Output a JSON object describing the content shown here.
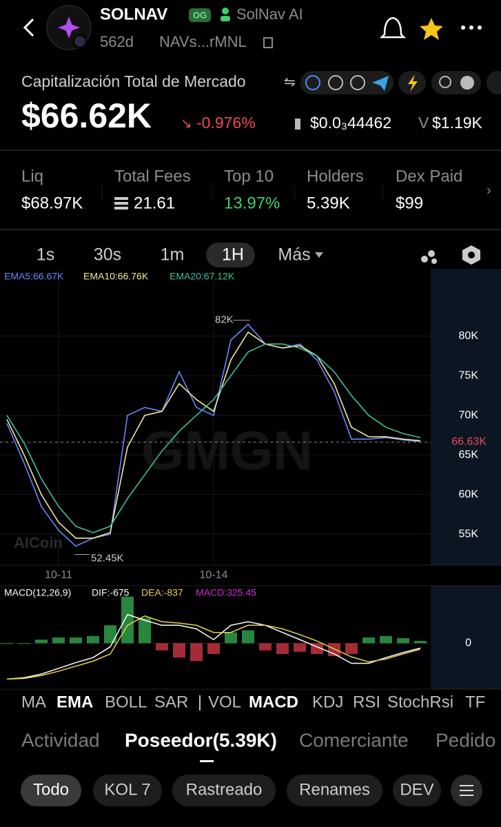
{
  "header": {
    "title": "SOLNAV",
    "badge": "OG",
    "creator": "SolNav AI",
    "age": "562d",
    "address": "NAVs...rMNL"
  },
  "market": {
    "label": "Capitalización Total de Mercado",
    "cap": "$66.62K",
    "change": "-0.976%",
    "price": "$0.0₃44462",
    "volume_label": "V",
    "volume": "$1.19K"
  },
  "stats": [
    {
      "label": "Liq",
      "value": "$68.97K"
    },
    {
      "label": "Total Fees",
      "value": "21.61"
    },
    {
      "label": "Top 10",
      "value": "13.97%"
    },
    {
      "label": "Holders",
      "value": "5.39K"
    },
    {
      "label": "Dex Paid",
      "value": "$99"
    }
  ],
  "timeframes": [
    "1s",
    "30s",
    "1m",
    "1H",
    "Más"
  ],
  "chart_data": [
    {
      "type": "line",
      "categories": [
        null,
        null,
        null,
        "10-11",
        null,
        null,
        null,
        null,
        null,
        null,
        null,
        null,
        "10-14",
        null,
        null,
        null,
        null,
        null,
        null,
        null,
        null,
        null,
        null,
        null,
        null
      ],
      "series": [
        {
          "name": "EMA5:66.67K",
          "color": "#6a86ff",
          "values": [
            69000,
            64000,
            58500,
            55500,
            53500,
            54500,
            55000,
            70000,
            71000,
            70500,
            75500,
            71000,
            70000,
            79500,
            81500,
            79000,
            78500,
            79000,
            77000,
            73000,
            67000,
            67000,
            67200,
            66900,
            66700
          ]
        },
        {
          "name": "EMA10:66.76K",
          "color": "#f2ea9a",
          "values": [
            69500,
            65000,
            60000,
            56500,
            54500,
            54500,
            55200,
            66000,
            70000,
            70500,
            74000,
            72000,
            70500,
            77000,
            80500,
            79000,
            78500,
            78800,
            77500,
            74000,
            68500,
            67300,
            67300,
            67000,
            66800
          ]
        },
        {
          "name": "EMA20:67.12K",
          "color": "#3fc1a0",
          "values": [
            70000,
            66500,
            62000,
            58500,
            56000,
            55200,
            56000,
            59500,
            62500,
            65500,
            68000,
            70000,
            72000,
            75000,
            78000,
            79000,
            79000,
            78500,
            77500,
            75500,
            72500,
            70000,
            68500,
            67700,
            67200
          ]
        }
      ],
      "ylim": [
        51100,
        88500
      ],
      "yticks": [
        {
          "value": 55000,
          "label": "55K"
        },
        {
          "value": 60000,
          "label": "60K"
        },
        {
          "value": 65000,
          "label": "65K"
        },
        {
          "value": 70000,
          "label": "70K"
        },
        {
          "value": 75000,
          "label": "75K"
        },
        {
          "value": 80000,
          "label": "80K"
        }
      ],
      "annotations": [
        {
          "text": "82K",
          "value": 82000
        },
        {
          "text": "52.45K",
          "value": 52450
        }
      ],
      "last_price": {
        "value": 66630,
        "label": "66.63K"
      }
    },
    {
      "type": "bar",
      "title": "MACD(12,26,9)",
      "ylim": [
        -6400,
        8000
      ],
      "yticks": [
        0
      ],
      "series": [
        {
          "name": "DIF:-675",
          "color": "#ffffff",
          "values": [
            -5000,
            -4800,
            -4300,
            -3500,
            -2700,
            -2000,
            -500,
            4000,
            3200,
            2500,
            2500,
            2000,
            500,
            2500,
            3000,
            2500,
            1500,
            500,
            -500,
            -1500,
            -2800,
            -2800,
            -2000,
            -1300,
            -675
          ]
        },
        {
          "name": "DEA:-837",
          "color": "#e8d44d",
          "values": [
            -5000,
            -4900,
            -4500,
            -3900,
            -3200,
            -2500,
            -1500,
            2500,
            3800,
            3000,
            2800,
            2500,
            1500,
            1500,
            2500,
            2500,
            2000,
            1200,
            300,
            -800,
            -1900,
            -2600,
            -2200,
            -1500,
            -837
          ]
        },
        {
          "name": "MACD:325.45",
          "color": "#d62ad6",
          "style": "bar",
          "values": [
            0,
            0,
            500,
            800,
            800,
            1000,
            2500,
            6500,
            3500,
            -1000,
            -2000,
            -2500,
            -1500,
            1500,
            1800,
            -1000,
            -1500,
            -1200,
            -1500,
            -1800,
            -1500,
            800,
            1000,
            700,
            325.45
          ]
        }
      ]
    }
  ],
  "indicators": [
    "MA",
    "EMA",
    "BOLL",
    "SAR",
    "VOL",
    "MACD",
    "KDJ",
    "RSI",
    "StochRsi",
    "TF"
  ],
  "tabs": [
    "Actividad",
    "Poseedor(5.39K)",
    "Comerciante",
    "Pedido"
  ],
  "filters": [
    "Todo",
    "KOL 7",
    "Rastreado",
    "Renames",
    "DEV"
  ],
  "watermarks": [
    "AICoin",
    "GMGN"
  ]
}
